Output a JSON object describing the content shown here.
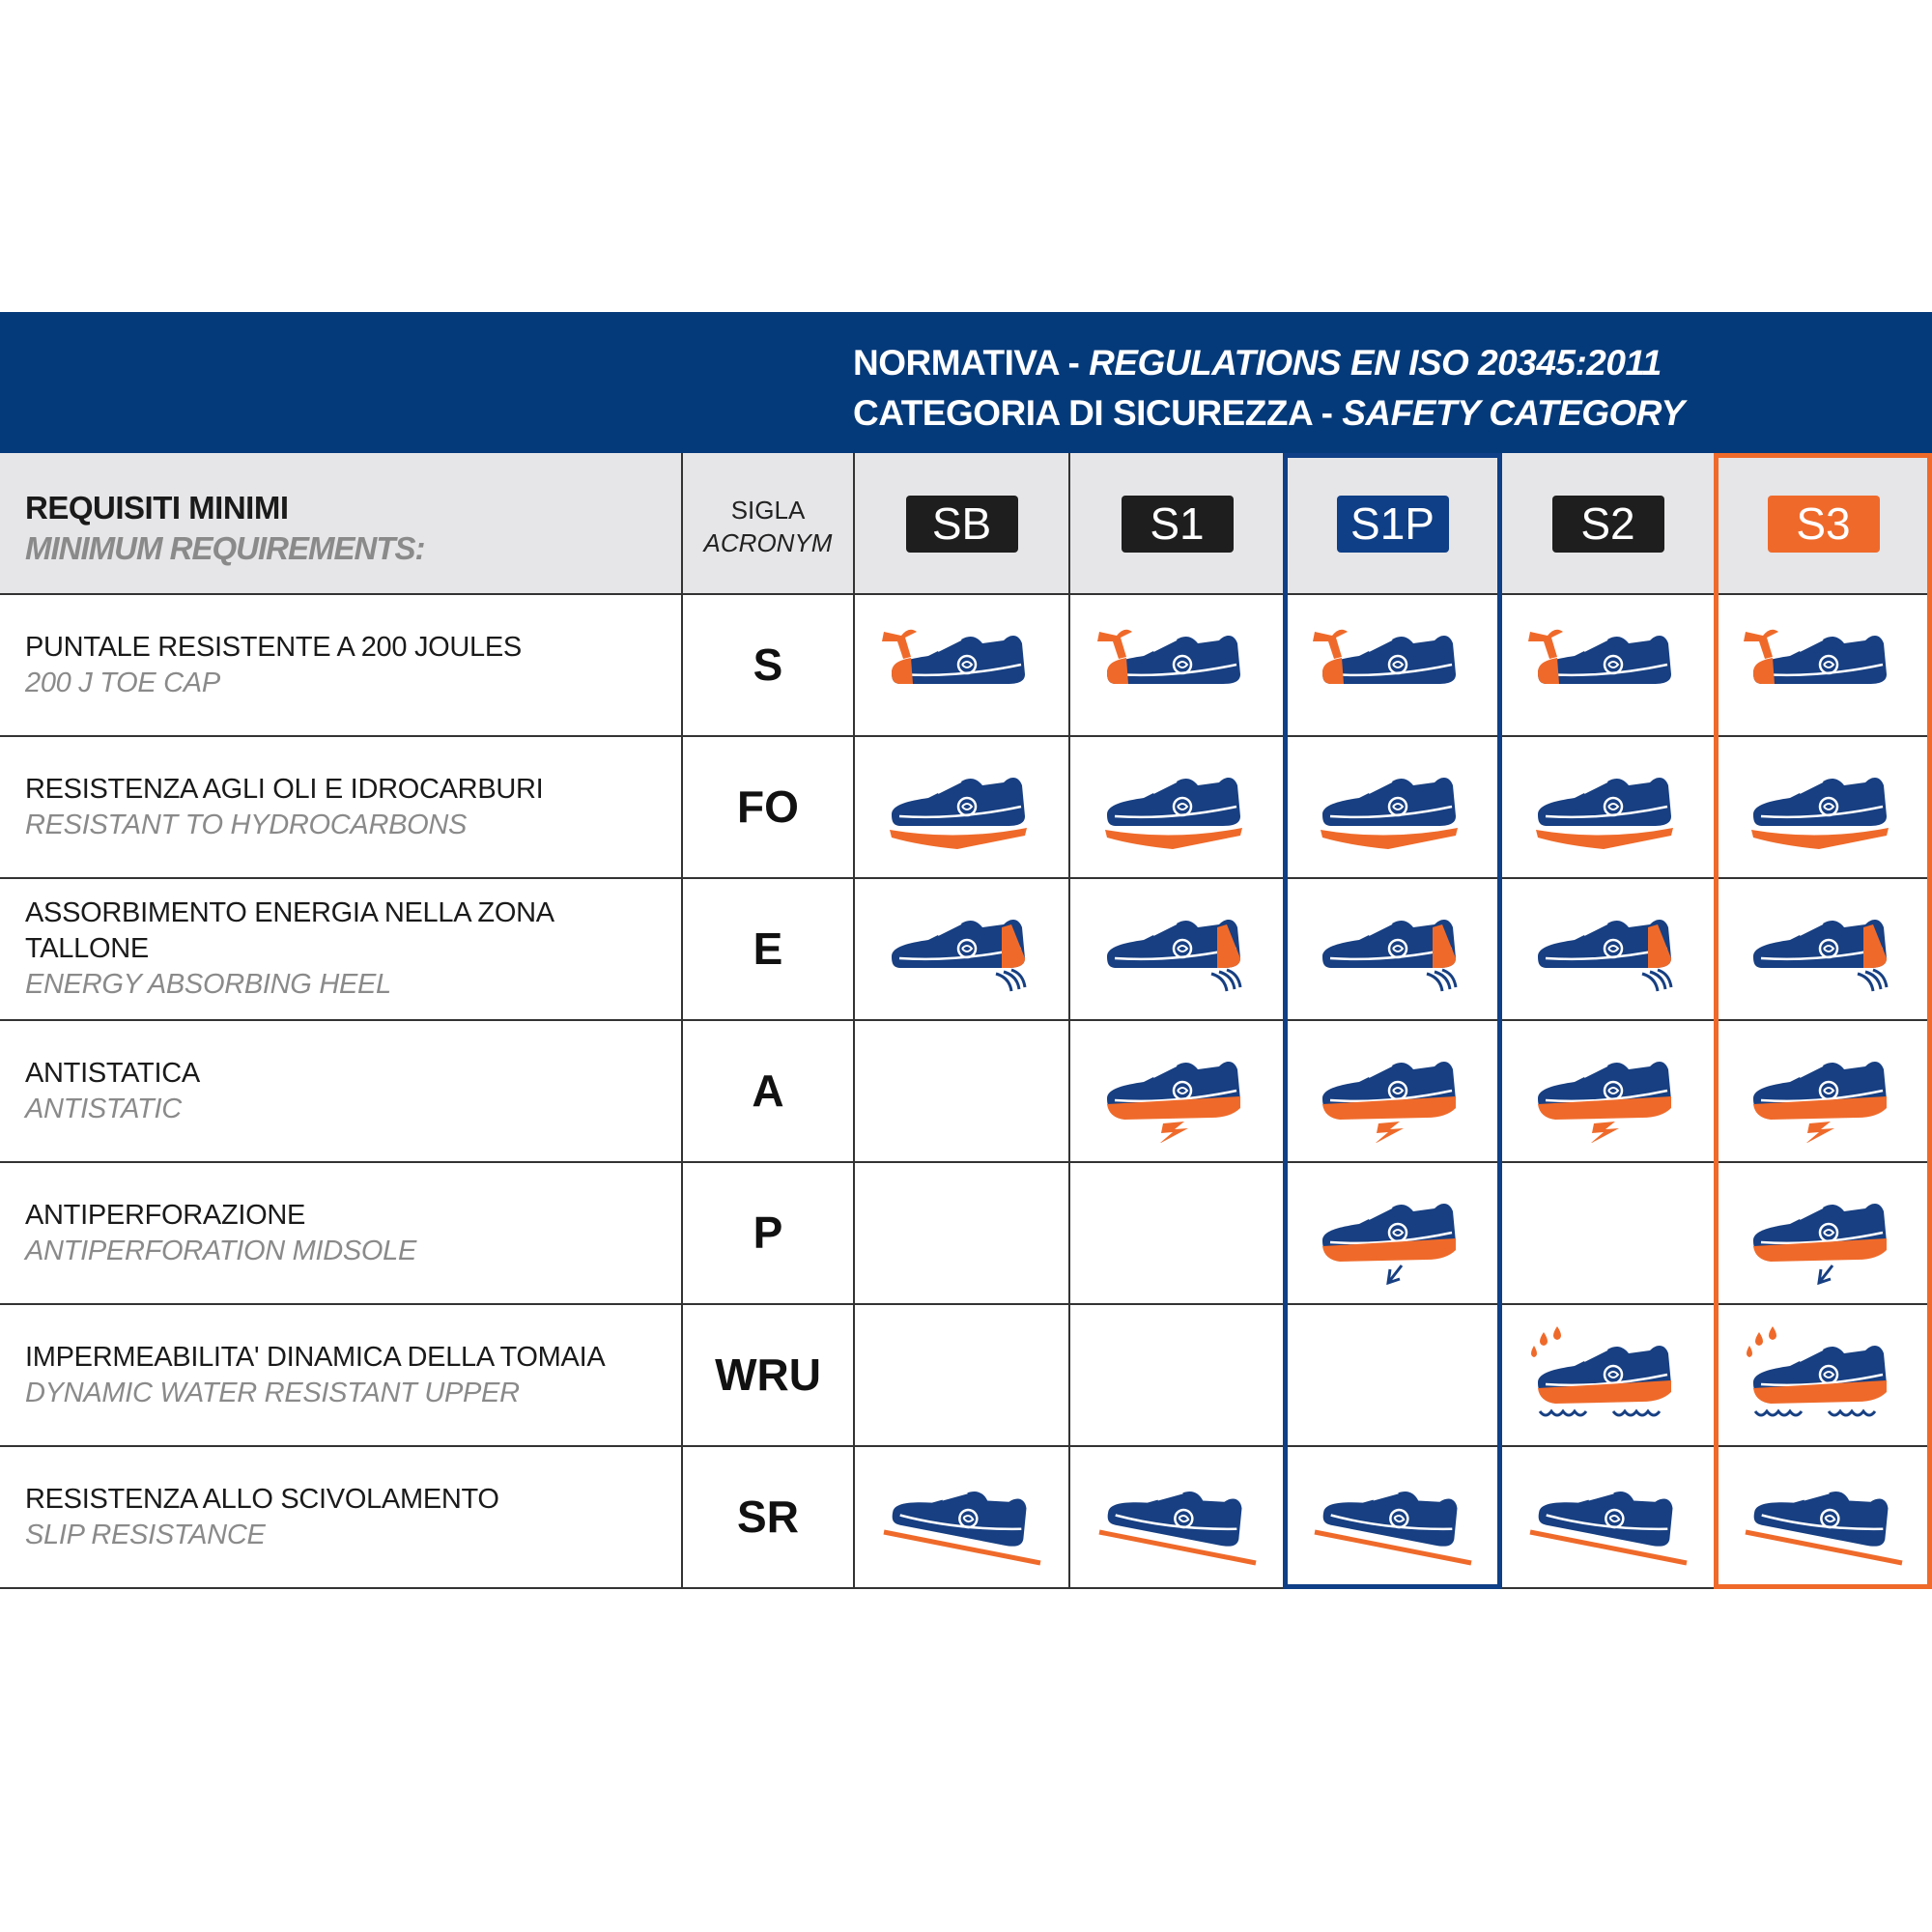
{
  "header": {
    "line1_it": "NORMATIVA",
    "line1_en": "REGULATIONS EN ISO 20345:2011",
    "line2_it": "CATEGORIA DI SICUREZZA",
    "line2_en": "SAFETY CATEGORY",
    "separator": " - "
  },
  "columns": {
    "requirements_it": "REQUISITI MINIMI",
    "requirements_en": "MINIMUM REQUIREMENTS:",
    "acronym_it": "SIGLA",
    "acronym_en": "ACRONYM"
  },
  "categories": [
    {
      "label": "SB",
      "color": "#1e1e1e",
      "features": [
        "S",
        "FO",
        "E",
        "SR"
      ]
    },
    {
      "label": "S1",
      "color": "#1e1e1e",
      "features": [
        "S",
        "FO",
        "E",
        "A",
        "SR"
      ]
    },
    {
      "label": "S1P",
      "color": "#0f3f86",
      "highlight": "#0f3f86",
      "features": [
        "S",
        "FO",
        "E",
        "A",
        "P",
        "SR"
      ]
    },
    {
      "label": "S2",
      "color": "#1e1e1e",
      "features": [
        "S",
        "FO",
        "E",
        "A",
        "WRU",
        "SR"
      ]
    },
    {
      "label": "S3",
      "color": "#ef6a2a",
      "highlight": "#ef6a2a",
      "features": [
        "S",
        "FO",
        "E",
        "A",
        "P",
        "WRU",
        "SR"
      ]
    }
  ],
  "rows": [
    {
      "it": "PUNTALE RESISTENTE A 200 JOULES",
      "en": "200 J TOE CAP",
      "acronym": "S",
      "icon": "shoe-toecap-hammer-icon"
    },
    {
      "it": "RESISTENZA AGLI OLI E IDROCARBURI",
      "en": "RESISTANT TO HYDROCARBONS",
      "acronym": "FO",
      "icon": "shoe-oil-resistant-sole-icon"
    },
    {
      "it": "ASSORBIMENTO ENERGIA NELLA ZONA TALLONE",
      "en": "ENERGY ABSORBING HEEL",
      "acronym": "E",
      "icon": "shoe-energy-heel-icon"
    },
    {
      "it": "ANTISTATICA",
      "en": "ANTISTATIC",
      "acronym": "A",
      "icon": "shoe-antistatic-icon"
    },
    {
      "it": "ANTIPERFORAZIONE",
      "en": "ANTIPERFORATION MIDSOLE",
      "acronym": "P",
      "icon": "shoe-antiperforation-icon"
    },
    {
      "it": "IMPERMEABILITA' DINAMICA DELLA TOMAIA",
      "en": "DYNAMIC WATER  RESISTANT UPPER",
      "acronym": "WRU",
      "icon": "shoe-water-resistant-icon"
    },
    {
      "it": "RESISTENZA ALLO SCIVOLAMENTO",
      "en": "SLIP RESISTANCE",
      "acronym": "SR",
      "icon": "shoe-slip-resistance-icon"
    }
  ],
  "colors": {
    "navy": "#053a7a",
    "shoe": "#173f82",
    "orange": "#ef6a2a",
    "header_grey": "#e6e6e8"
  }
}
